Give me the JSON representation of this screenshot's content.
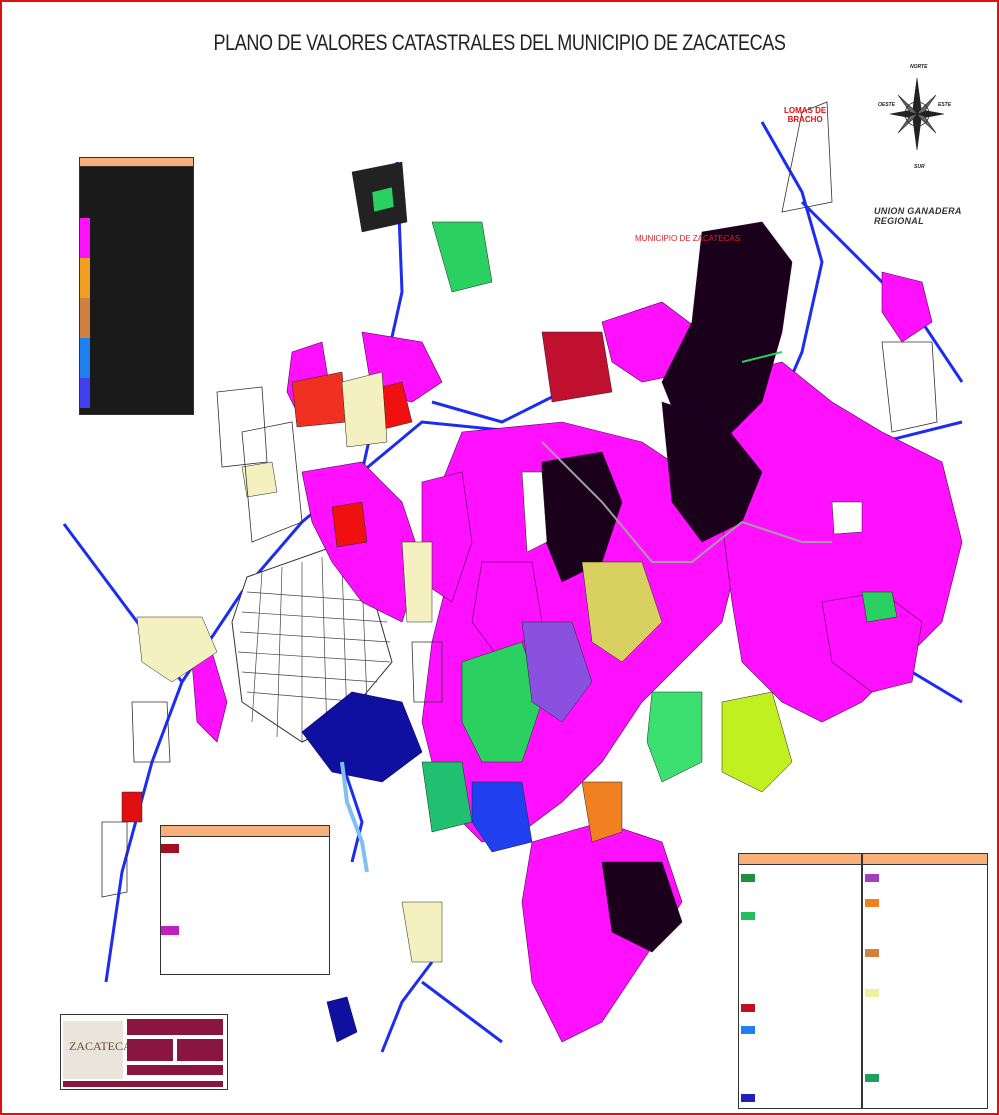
{
  "map": {
    "title": "PLANO DE VALORES CATASTRALES DEL MUNICIPIO DE ZACATECAS",
    "municipality_label": "MUNICIPIO DE ZACATECAS",
    "region_label": "UNION GANADERA REGIONAL",
    "lomas_label_line1": "LOMAS DE",
    "lomas_label_line2": "BRACHO",
    "compass": {
      "north": "NORTE",
      "south": "SUR",
      "east": "ESTE",
      "west": "OESTE"
    },
    "logo_text": "ZACATECAS",
    "colors": {
      "frame": "#e01010",
      "road": "#1c2cf0",
      "magenta_zone": "#ff10ff",
      "dark_zone": "#200020",
      "legend_header": "#f7b07a",
      "title_block": "#8a1640"
    }
  }
}
